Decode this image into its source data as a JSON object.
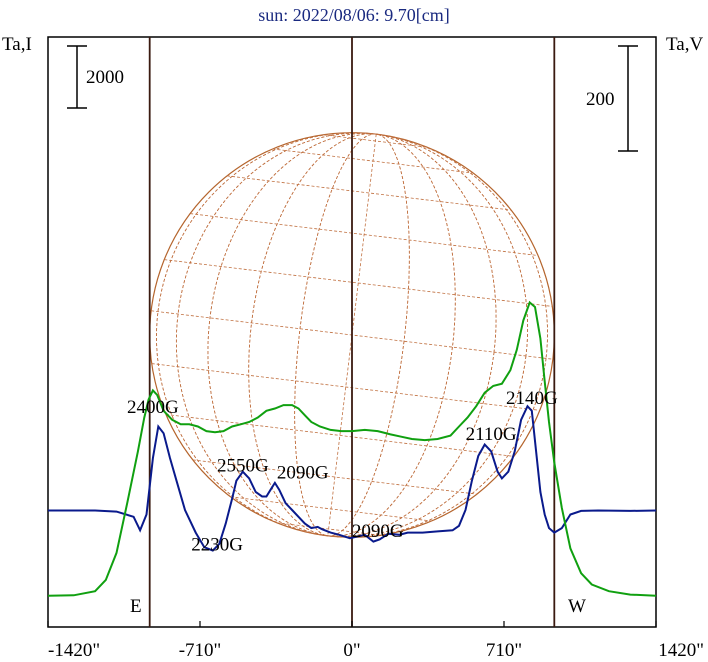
{
  "chart_data": {
    "type": "line",
    "title": "sun: 2022/08/06: 9.70[cm]",
    "left_axis_label": "Ta,I",
    "right_axis_label": "Ta,V",
    "x_ticks": [
      {
        "value": -1420,
        "label": "-1420\""
      },
      {
        "value": -710,
        "label": "-710\""
      },
      {
        "value": 0,
        "label": "0\""
      },
      {
        "value": 710,
        "label": "710\""
      },
      {
        "value": 1420,
        "label": "1420\""
      }
    ],
    "xlim": [
      -1420,
      1420
    ],
    "disk_radius": 945,
    "limb_labels": {
      "east": "E",
      "west": "W"
    },
    "scale_bars": {
      "left": "2000",
      "right": "200"
    },
    "annotations": [
      {
        "text": "2400G",
        "x": -930,
        "y": 820
      },
      {
        "text": "2230G",
        "x": -630,
        "y": 210
      },
      {
        "text": "2550G",
        "x": -510,
        "y": 560
      },
      {
        "text": "2090G",
        "x": -230,
        "y": 530
      },
      {
        "text": "2090G",
        "x": 120,
        "y": 270
      },
      {
        "text": "2110G",
        "x": 650,
        "y": 700
      },
      {
        "text": "2140G",
        "x": 840,
        "y": 860
      }
    ],
    "series": [
      {
        "color": "#0a1a8c",
        "points": [
          [
            -1420,
            388
          ],
          [
            -1200,
            388
          ],
          [
            -1100,
            383
          ],
          [
            -1020,
            360
          ],
          [
            -990,
            300
          ],
          [
            -960,
            370
          ],
          [
            -930,
            620
          ],
          [
            -905,
            760
          ],
          [
            -880,
            730
          ],
          [
            -850,
            620
          ],
          [
            -820,
            520
          ],
          [
            -780,
            390
          ],
          [
            -730,
            290
          ],
          [
            -690,
            225
          ],
          [
            -650,
            210
          ],
          [
            -620,
            240
          ],
          [
            -590,
            330
          ],
          [
            -560,
            440
          ],
          [
            -540,
            520
          ],
          [
            -510,
            560
          ],
          [
            -480,
            530
          ],
          [
            -450,
            470
          ],
          [
            -420,
            450
          ],
          [
            -400,
            450
          ],
          [
            -380,
            480
          ],
          [
            -360,
            510
          ],
          [
            -340,
            480
          ],
          [
            -310,
            420
          ],
          [
            -280,
            390
          ],
          [
            -250,
            360
          ],
          [
            -220,
            330
          ],
          [
            -190,
            310
          ],
          [
            -160,
            315
          ],
          [
            -140,
            305
          ],
          [
            -100,
            290
          ],
          [
            -60,
            280
          ],
          [
            -10,
            265
          ],
          [
            60,
            280
          ],
          [
            100,
            250
          ],
          [
            130,
            260
          ],
          [
            170,
            285
          ],
          [
            220,
            280
          ],
          [
            260,
            290
          ],
          [
            330,
            290
          ],
          [
            400,
            295
          ],
          [
            470,
            300
          ],
          [
            500,
            320
          ],
          [
            530,
            390
          ],
          [
            560,
            520
          ],
          [
            590,
            630
          ],
          [
            620,
            680
          ],
          [
            650,
            650
          ],
          [
            680,
            560
          ],
          [
            700,
            530
          ],
          [
            730,
            560
          ],
          [
            760,
            650
          ],
          [
            790,
            790
          ],
          [
            820,
            850
          ],
          [
            840,
            830
          ],
          [
            860,
            650
          ],
          [
            880,
            470
          ],
          [
            900,
            370
          ],
          [
            920,
            310
          ],
          [
            945,
            290
          ],
          [
            980,
            310
          ],
          [
            1020,
            370
          ],
          [
            1070,
            386
          ],
          [
            1150,
            388
          ],
          [
            1300,
            386
          ],
          [
            1420,
            388
          ]
        ]
      },
      {
        "color": "#10a010",
        "points": [
          [
            -1420,
            10
          ],
          [
            -1300,
            12
          ],
          [
            -1200,
            30
          ],
          [
            -1150,
            80
          ],
          [
            -1100,
            200
          ],
          [
            -1050,
            420
          ],
          [
            -1000,
            650
          ],
          [
            -970,
            800
          ],
          [
            -950,
            880
          ],
          [
            -930,
            920
          ],
          [
            -910,
            900
          ],
          [
            -880,
            830
          ],
          [
            -840,
            790
          ],
          [
            -800,
            770
          ],
          [
            -760,
            770
          ],
          [
            -720,
            760
          ],
          [
            -680,
            740
          ],
          [
            -640,
            735
          ],
          [
            -600,
            740
          ],
          [
            -560,
            760
          ],
          [
            -520,
            770
          ],
          [
            -480,
            780
          ],
          [
            -440,
            800
          ],
          [
            -400,
            830
          ],
          [
            -360,
            840
          ],
          [
            -320,
            855
          ],
          [
            -280,
            855
          ],
          [
            -250,
            840
          ],
          [
            -220,
            810
          ],
          [
            -190,
            780
          ],
          [
            -150,
            760
          ],
          [
            -100,
            745
          ],
          [
            -50,
            740
          ],
          [
            0,
            740
          ],
          [
            60,
            745
          ],
          [
            120,
            740
          ],
          [
            180,
            725
          ],
          [
            230,
            715
          ],
          [
            280,
            705
          ],
          [
            340,
            700
          ],
          [
            400,
            705
          ],
          [
            460,
            720
          ],
          [
            500,
            760
          ],
          [
            540,
            800
          ],
          [
            580,
            850
          ],
          [
            620,
            910
          ],
          [
            660,
            940
          ],
          [
            700,
            950
          ],
          [
            740,
            1010
          ],
          [
            770,
            1100
          ],
          [
            800,
            1230
          ],
          [
            830,
            1310
          ],
          [
            855,
            1290
          ],
          [
            880,
            1150
          ],
          [
            900,
            960
          ],
          [
            920,
            780
          ],
          [
            945,
            600
          ],
          [
            980,
            400
          ],
          [
            1020,
            220
          ],
          [
            1070,
            110
          ],
          [
            1120,
            60
          ],
          [
            1200,
            30
          ],
          [
            1300,
            15
          ],
          [
            1420,
            10
          ]
        ]
      }
    ]
  }
}
